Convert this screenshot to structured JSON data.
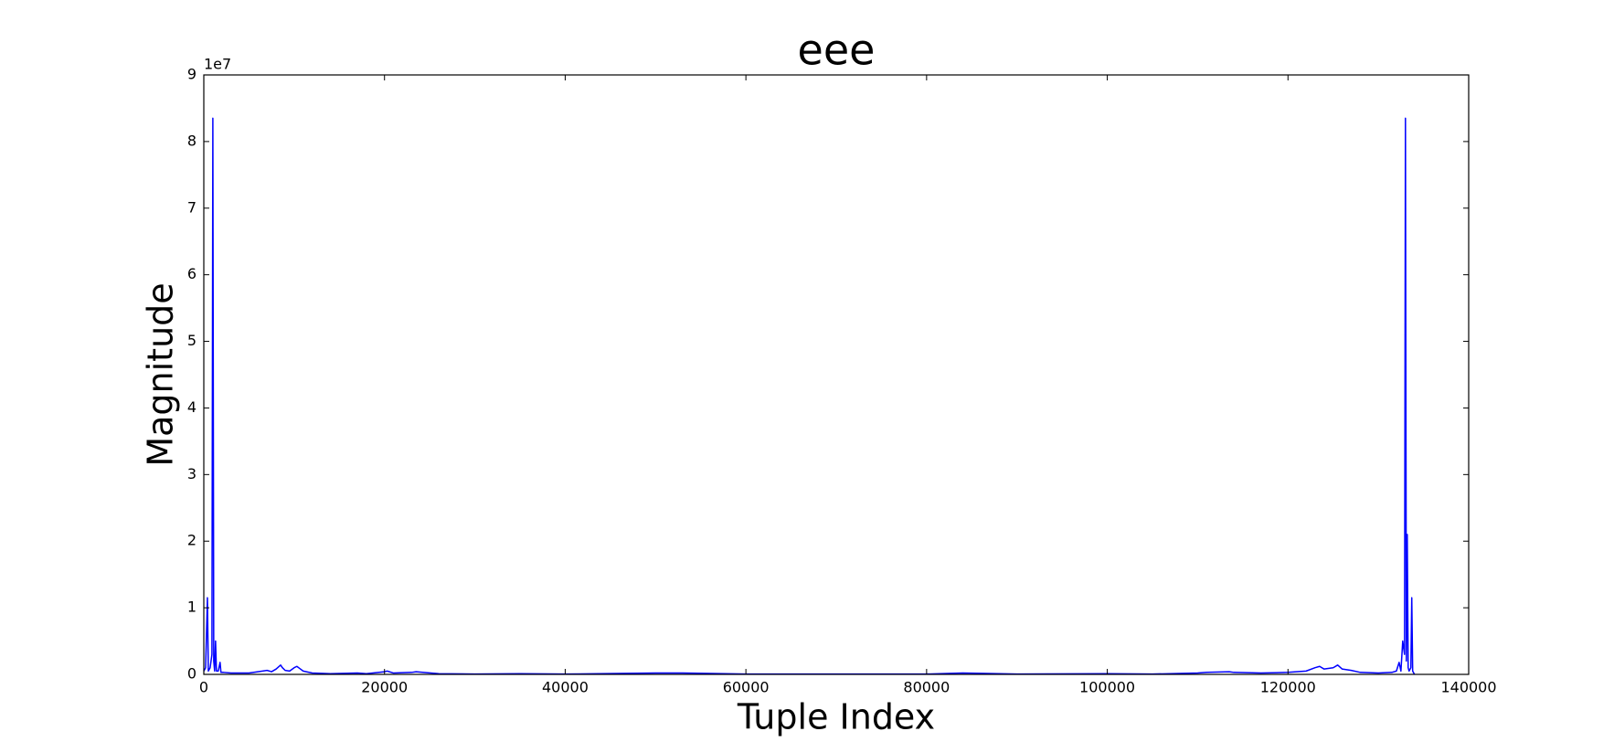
{
  "chart_data": {
    "type": "line",
    "title": "eee",
    "xlabel": "Tuple Index",
    "ylabel": "Magnitude",
    "y_offset_label": "1e7",
    "x": [
      0,
      200,
      400,
      500,
      700,
      900,
      1000,
      1100,
      1200,
      1300,
      1400,
      1600,
      1800,
      1900,
      2200,
      3000,
      5000,
      6500,
      7000,
      7500,
      8000,
      8500,
      8700,
      9000,
      9500,
      10000,
      10300,
      10600,
      11000,
      12000,
      14000,
      17000,
      18000,
      20000,
      20300,
      21000,
      23000,
      23500,
      26000,
      30000,
      35000,
      40000,
      50000,
      51000,
      53000,
      60000,
      70000,
      80000,
      84000,
      90000,
      100000,
      105000,
      110000,
      111000,
      113500,
      114000,
      117000,
      120000,
      122000,
      123000,
      123500,
      124000,
      125000,
      125500,
      126000,
      127000,
      128000,
      130000,
      131500,
      132000,
      132300,
      132500,
      132700,
      132900,
      133000,
      133100,
      133200,
      133300,
      133400,
      133600,
      133700,
      133800,
      134000
    ],
    "series": [
      {
        "color": "#0000ff",
        "values": [
          0.05,
          0.1,
          1.15,
          0.05,
          0.1,
          0.3,
          8.35,
          0.2,
          0.05,
          0.5,
          0.05,
          0.05,
          0.18,
          0.03,
          0.03,
          0.02,
          0.02,
          0.05,
          0.06,
          0.04,
          0.08,
          0.14,
          0.1,
          0.06,
          0.05,
          0.1,
          0.12,
          0.09,
          0.05,
          0.02,
          0.01,
          0.02,
          0.01,
          0.04,
          0.05,
          0.02,
          0.03,
          0.04,
          0.01,
          0.005,
          0.01,
          0.005,
          0.02,
          0.02,
          0.02,
          0.005,
          0.005,
          0.005,
          0.02,
          0.005,
          0.01,
          0.005,
          0.02,
          0.03,
          0.04,
          0.03,
          0.02,
          0.03,
          0.05,
          0.1,
          0.12,
          0.08,
          0.1,
          0.14,
          0.08,
          0.06,
          0.03,
          0.02,
          0.03,
          0.05,
          0.18,
          0.05,
          0.5,
          0.3,
          8.35,
          0.2,
          2.1,
          0.1,
          0.05,
          0.1,
          1.15,
          0.05,
          0
        ]
      }
    ],
    "xlim": [
      0,
      140000
    ],
    "xticks": [
      0,
      20000,
      40000,
      60000,
      80000,
      100000,
      120000,
      140000
    ],
    "ylim": [
      0,
      9
    ],
    "yticks": [
      0,
      1,
      2,
      3,
      4,
      5,
      6,
      7,
      8,
      9
    ],
    "grid": false
  }
}
